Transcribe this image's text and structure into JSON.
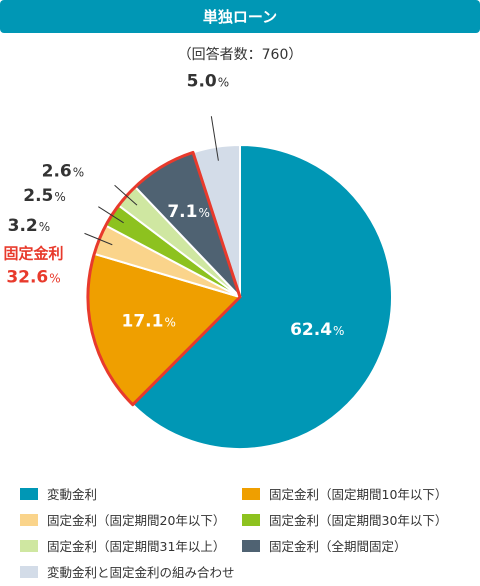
{
  "header": {
    "title": "単独ローン",
    "subtitle": "（回答者数：760）"
  },
  "chart_data": {
    "type": "pie",
    "title": "単独ローン",
    "subtitle": "（回答者数：760）",
    "slices": [
      {
        "label": "変動金利",
        "value": 62.4,
        "display": "62.4",
        "color": "#0097b5"
      },
      {
        "label": "固定金利（固定期間10年以下）",
        "value": 17.1,
        "display": "17.1",
        "color": "#ef9f00"
      },
      {
        "label": "固定金利（固定期間20年以下）",
        "value": 3.2,
        "display": "3.2",
        "color": "#fad48b"
      },
      {
        "label": "固定金利（固定期間30年以下）",
        "value": 2.5,
        "display": "2.5",
        "color": "#8dc21f"
      },
      {
        "label": "固定金利（固定期間31年以上）",
        "value": 2.6,
        "display": "2.6",
        "color": "#cfe7a1"
      },
      {
        "label": "固定金利（全期間固定）",
        "value": 7.1,
        "display": "7.1",
        "color": "#4f6272"
      },
      {
        "label": "変動金利と固定金利の組み合わせ",
        "value": 5.0,
        "display": "5.0",
        "color": "#d3dce8"
      }
    ],
    "unit": "%",
    "group": {
      "label": "固定金利",
      "value": "32.6",
      "color": "#e83a2c"
    },
    "legend_position": "bottom"
  }
}
